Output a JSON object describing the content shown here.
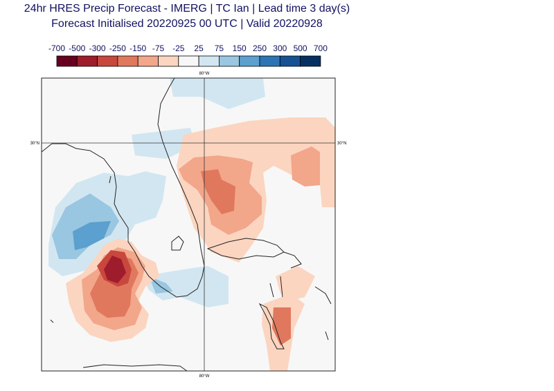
{
  "title": {
    "line1": "24hr HRES Precip Forecast - IMERG | TC Ian | Lead time 3 day(s)",
    "line2": "Forecast Initialised 20220925 00 UTC | Valid 20220928"
  },
  "colorbar": {
    "levels": [
      "-700",
      "-500",
      "-300",
      "-250",
      "-150",
      "-75",
      "-25",
      "25",
      "75",
      "150",
      "250",
      "300",
      "500",
      "700"
    ],
    "colors": [
      "#67001f",
      "#9e1c2b",
      "#c8473e",
      "#e0785e",
      "#f2a68a",
      "#fbd5c0",
      "#f7f7f7",
      "#d2e6f1",
      "#99c6e0",
      "#5ba0ce",
      "#2c74b4",
      "#165193",
      "#053061"
    ]
  },
  "map": {
    "gridlines": {
      "lon_label": "80°W",
      "lat_label": "30°N"
    },
    "background_color": "#f7f7f7",
    "coastline_color": "#222222"
  }
}
